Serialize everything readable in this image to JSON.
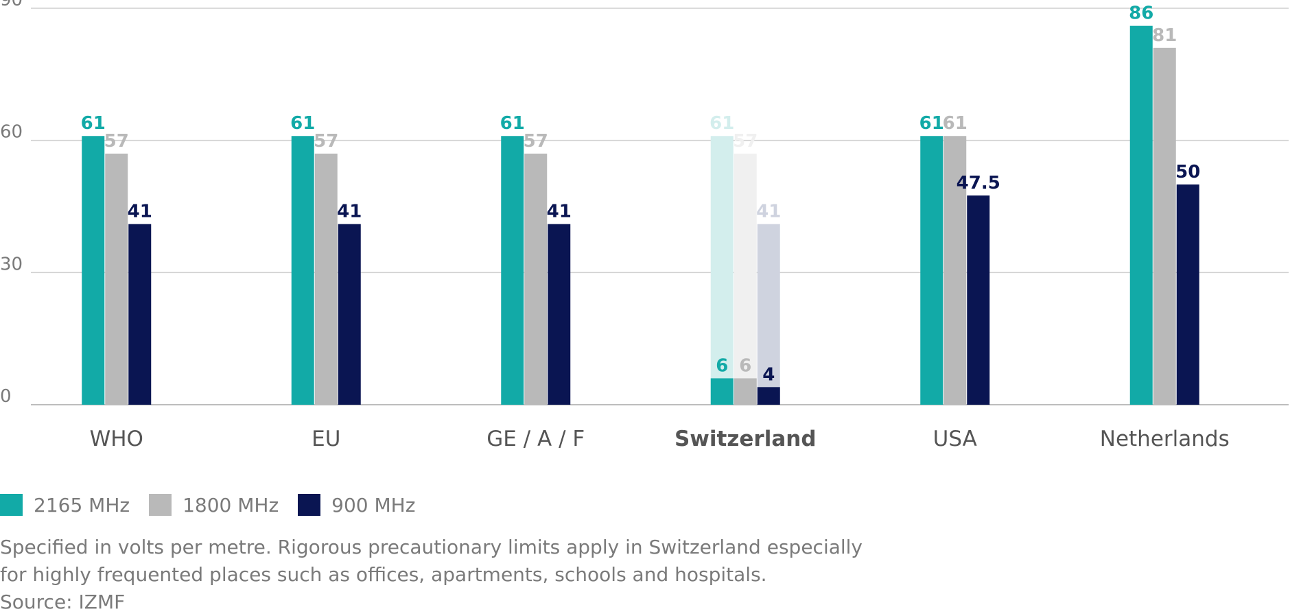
{
  "chart_data": {
    "type": "bar",
    "categories": [
      "WHO",
      "EU",
      "GE / A / F",
      "Switzerland",
      "USA",
      "Netherlands"
    ],
    "highlight_category": "Switzerland",
    "series": [
      {
        "name": "2165 MHz",
        "color": "#12aaa7",
        "values": [
          61,
          61,
          61,
          61,
          61,
          86
        ],
        "precautionary_values": [
          null,
          null,
          null,
          6,
          null,
          null
        ]
      },
      {
        "name": "1800 MHz",
        "color": "#b9b9b9",
        "values": [
          57,
          57,
          57,
          57,
          61,
          81
        ],
        "precautionary_values": [
          null,
          null,
          null,
          6,
          null,
          null
        ]
      },
      {
        "name": "900 MHz",
        "color": "#0a1552",
        "values": [
          41,
          41,
          41,
          41,
          47.5,
          50
        ],
        "precautionary_values": [
          null,
          null,
          null,
          4,
          null,
          null
        ]
      }
    ],
    "faded_colors": {
      "2165 MHz": "#d3eeed",
      "1800 MHz": "#f0f0f0",
      "900 MHz": "#cfd3df"
    },
    "yticks": [
      0,
      30,
      60,
      90
    ],
    "ylim": [
      0,
      90
    ],
    "grid": true,
    "legend_position": "bottom-left",
    "title": "",
    "xlabel": "",
    "ylabel": ""
  },
  "footnote": {
    "line1": "Specified in volts per metre. Rigorous precautionary limits apply in Switzerland especially",
    "line2": "for highly frequented places such as offices, apartments, schools and hospitals.",
    "source": "Source: IZMF"
  }
}
